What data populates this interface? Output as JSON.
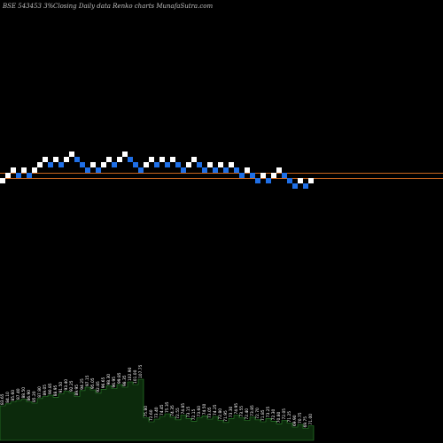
{
  "header": {
    "left": "BSE 543453 3%",
    "right": "Closing Daily data  Renko  charts MunafaSutra.com"
  },
  "colors": {
    "up_brick": "#ffffff",
    "down_brick": "#1f6fe6",
    "line": "#c8641e",
    "volume_fill": "#0c2a0c",
    "volume_stroke": "#2e8b2e"
  },
  "chart_data": {
    "type": "renko",
    "box_size": 1,
    "reference_lines": [
      0,
      1
    ],
    "bricks": [
      {
        "level": 0,
        "dir": "up"
      },
      {
        "level": 1,
        "dir": "up"
      },
      {
        "level": 2,
        "dir": "up"
      },
      {
        "level": 1,
        "dir": "down"
      },
      {
        "level": 2,
        "dir": "up"
      },
      {
        "level": 1,
        "dir": "down"
      },
      {
        "level": 2,
        "dir": "up"
      },
      {
        "level": 3,
        "dir": "up"
      },
      {
        "level": 4,
        "dir": "up"
      },
      {
        "level": 3,
        "dir": "down"
      },
      {
        "level": 4,
        "dir": "up"
      },
      {
        "level": 3,
        "dir": "down"
      },
      {
        "level": 4,
        "dir": "up"
      },
      {
        "level": 5,
        "dir": "up"
      },
      {
        "level": 4,
        "dir": "down"
      },
      {
        "level": 3,
        "dir": "down"
      },
      {
        "level": 2,
        "dir": "down"
      },
      {
        "level": 3,
        "dir": "up"
      },
      {
        "level": 2,
        "dir": "down"
      },
      {
        "level": 3,
        "dir": "up"
      },
      {
        "level": 4,
        "dir": "up"
      },
      {
        "level": 3,
        "dir": "down"
      },
      {
        "level": 4,
        "dir": "up"
      },
      {
        "level": 5,
        "dir": "up"
      },
      {
        "level": 4,
        "dir": "down"
      },
      {
        "level": 3,
        "dir": "down"
      },
      {
        "level": 2,
        "dir": "down"
      },
      {
        "level": 3,
        "dir": "up"
      },
      {
        "level": 4,
        "dir": "up"
      },
      {
        "level": 3,
        "dir": "down"
      },
      {
        "level": 4,
        "dir": "up"
      },
      {
        "level": 3,
        "dir": "down"
      },
      {
        "level": 4,
        "dir": "up"
      },
      {
        "level": 3,
        "dir": "down"
      },
      {
        "level": 2,
        "dir": "down"
      },
      {
        "level": 3,
        "dir": "up"
      },
      {
        "level": 4,
        "dir": "up"
      },
      {
        "level": 3,
        "dir": "down"
      },
      {
        "level": 2,
        "dir": "down"
      },
      {
        "level": 3,
        "dir": "up"
      },
      {
        "level": 2,
        "dir": "down"
      },
      {
        "level": 3,
        "dir": "up"
      },
      {
        "level": 2,
        "dir": "down"
      },
      {
        "level": 3,
        "dir": "up"
      },
      {
        "level": 2,
        "dir": "down"
      },
      {
        "level": 1,
        "dir": "down"
      },
      {
        "level": 2,
        "dir": "up"
      },
      {
        "level": 1,
        "dir": "down"
      },
      {
        "level": 0,
        "dir": "down"
      },
      {
        "level": 1,
        "dir": "up"
      },
      {
        "level": 0,
        "dir": "down"
      },
      {
        "level": 1,
        "dir": "up"
      },
      {
        "level": 2,
        "dir": "up"
      },
      {
        "level": 1,
        "dir": "down"
      },
      {
        "level": 0,
        "dir": "down"
      },
      {
        "level": -1,
        "dir": "down"
      },
      {
        "level": 0,
        "dir": "up"
      },
      {
        "level": -1,
        "dir": "down"
      },
      {
        "level": 0,
        "dir": "up"
      }
    ],
    "volume": [
      {
        "v": 52,
        "label": "83.65"
      },
      {
        "v": 55,
        "label": "84.10"
      },
      {
        "v": 58,
        "label": "85.60"
      },
      {
        "v": 60,
        "label": "87.40"
      },
      {
        "v": 62,
        "label": "88.50"
      },
      {
        "v": 58,
        "label": "86.90"
      },
      {
        "v": 56,
        "label": "85.20"
      },
      {
        "v": 63,
        "label": "87.80"
      },
      {
        "v": 66,
        "label": "89.05"
      },
      {
        "v": 68,
        "label": "90.85"
      },
      {
        "v": 65,
        "label": "88.95"
      },
      {
        "v": 70,
        "label": "91.50"
      },
      {
        "v": 74,
        "label": "93.40"
      },
      {
        "v": 72,
        "label": "92.25"
      },
      {
        "v": 66,
        "label": "89.95"
      },
      {
        "v": 75,
        "label": "94.25"
      },
      {
        "v": 80,
        "label": "97.15"
      },
      {
        "v": 76,
        "label": "95.05"
      },
      {
        "v": 71,
        "label": "92.85"
      },
      {
        "v": 77,
        "label": "96.65"
      },
      {
        "v": 82,
        "label": "98.30"
      },
      {
        "v": 78,
        "label": "96.95"
      },
      {
        "v": 84,
        "label": "99.85"
      },
      {
        "v": 80,
        "label": "98.35"
      },
      {
        "v": 88,
        "label": "102.90"
      },
      {
        "v": 84,
        "label": "101.00"
      },
      {
        "v": 92,
        "label": "107.75"
      },
      {
        "v": 34,
        "label": "75.80"
      },
      {
        "v": 28,
        "label": "72.60"
      },
      {
        "v": 32,
        "label": "73.40"
      },
      {
        "v": 36,
        "label": "74.45"
      },
      {
        "v": 40,
        "label": "75.35"
      },
      {
        "v": 35,
        "label": "74.35"
      },
      {
        "v": 31,
        "label": "72.55"
      },
      {
        "v": 38,
        "label": "74.85"
      },
      {
        "v": 33,
        "label": "73.15"
      },
      {
        "v": 29,
        "label": "72.15"
      },
      {
        "v": 34,
        "label": "73.60"
      },
      {
        "v": 37,
        "label": "74.50"
      },
      {
        "v": 32,
        "label": "73.05"
      },
      {
        "v": 36,
        "label": "74.25"
      },
      {
        "v": 30,
        "label": "72.80"
      },
      {
        "v": 27,
        "label": "71.95"
      },
      {
        "v": 33,
        "label": "73.30"
      },
      {
        "v": 38,
        "label": "74.95"
      },
      {
        "v": 34,
        "label": "73.55"
      },
      {
        "v": 30,
        "label": "72.40"
      },
      {
        "v": 35,
        "label": "73.85"
      },
      {
        "v": 31,
        "label": "72.70"
      },
      {
        "v": 28,
        "label": "71.85"
      },
      {
        "v": 33,
        "label": "73.25"
      },
      {
        "v": 29,
        "label": "72.30"
      },
      {
        "v": 25,
        "label": "70.80"
      },
      {
        "v": 30,
        "label": "72.05"
      },
      {
        "v": 26,
        "label": "71.25"
      },
      {
        "v": 20,
        "label": "69.90"
      },
      {
        "v": 24,
        "label": "70.75"
      },
      {
        "v": 18,
        "label": "69.75"
      },
      {
        "v": 22,
        "label": "71.00"
      }
    ]
  }
}
